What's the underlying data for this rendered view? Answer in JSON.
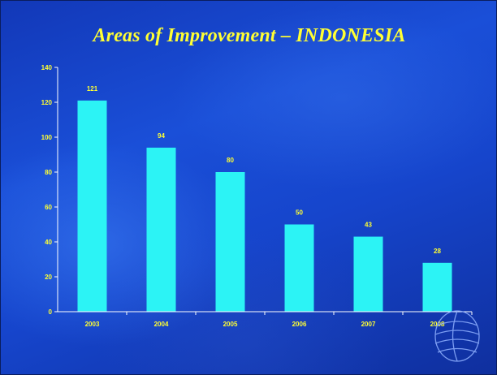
{
  "slide": {
    "title": "Areas of Improvement – INDONESIA"
  },
  "colors": {
    "bar": "#2cf3f5",
    "axis_text": "#ffff33",
    "axis_line": "#ffffff"
  },
  "chart_data": {
    "type": "bar",
    "categories": [
      "2003",
      "2004",
      "2005",
      "2006",
      "2007",
      "2008"
    ],
    "values": [
      121,
      94,
      80,
      50,
      43,
      28
    ],
    "data_labels": [
      "121",
      "94",
      "80",
      "50",
      "43",
      "28"
    ],
    "ylim": [
      0,
      140
    ],
    "yticks": [
      0,
      20,
      40,
      60,
      80,
      100,
      120,
      140
    ],
    "title": "",
    "xlabel": "",
    "ylabel": "",
    "grid": false,
    "legend": "none"
  }
}
